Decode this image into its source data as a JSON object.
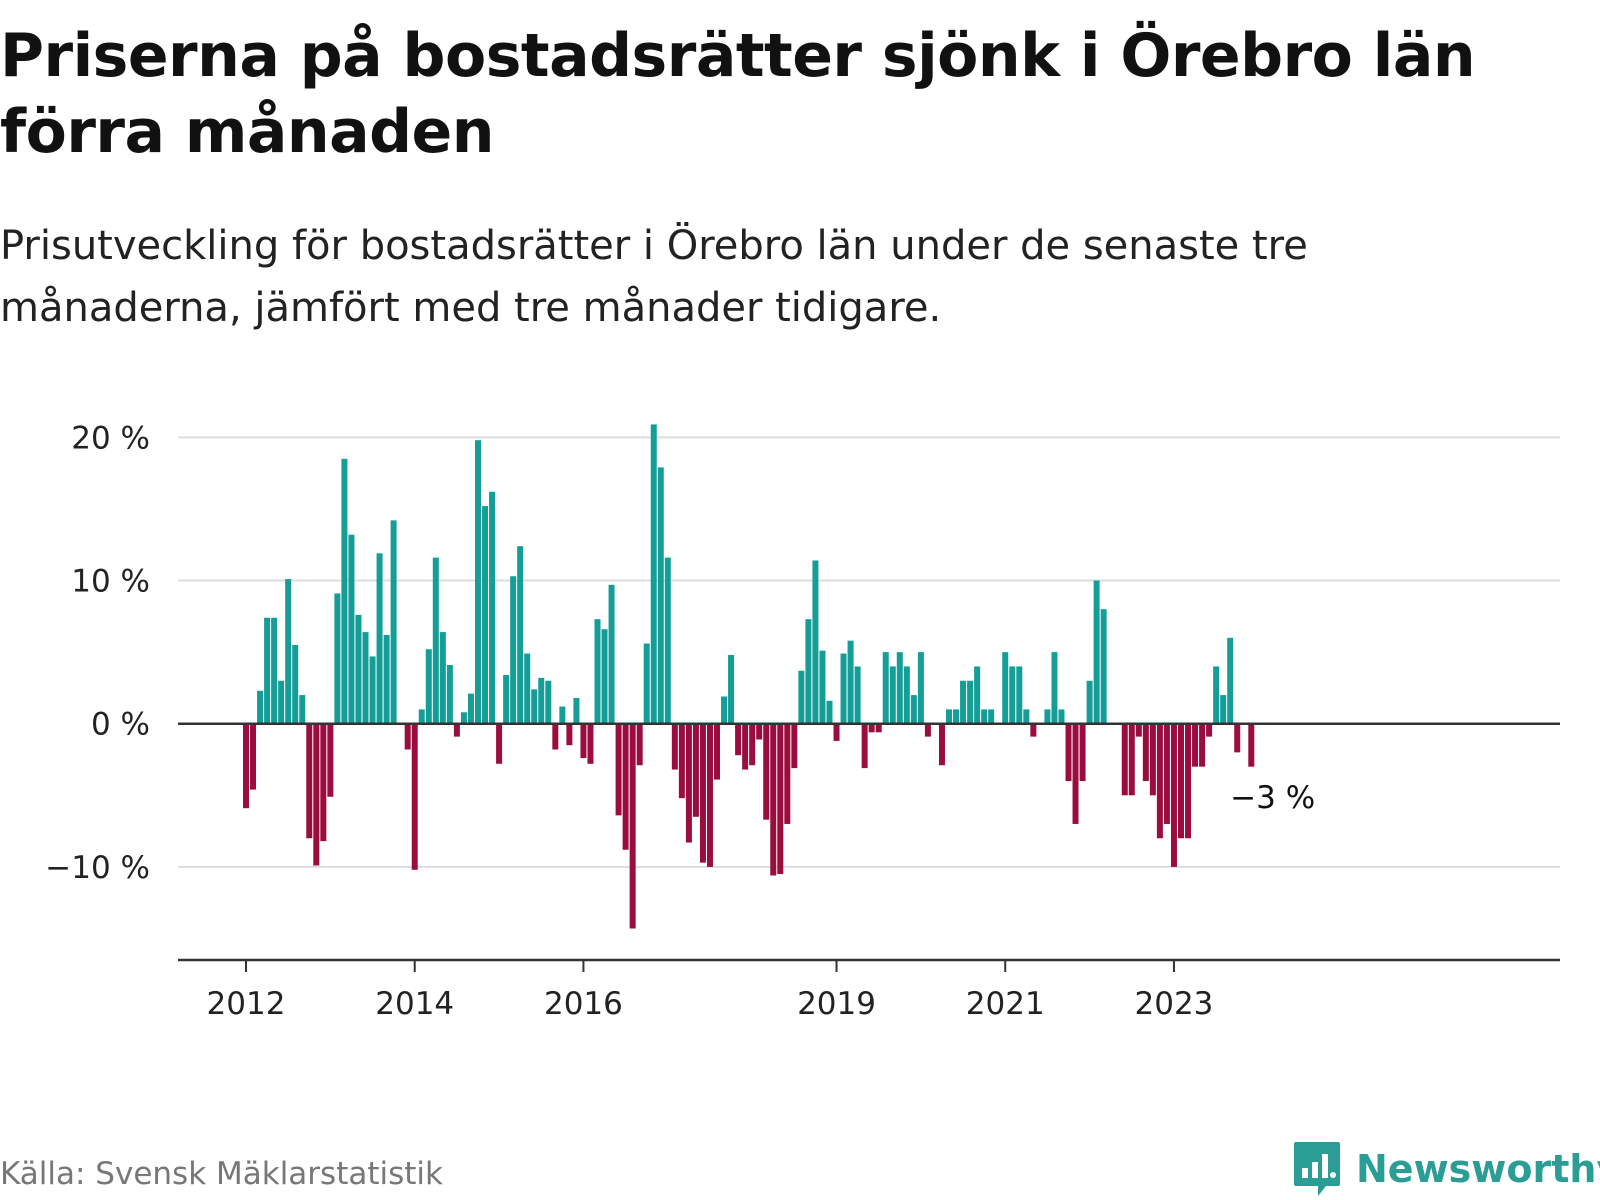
{
  "header": {
    "title": "Priserna på bostadsrätter sjönk i Örebro län förra månaden",
    "subtitle": "Prisutveckling för bostadsrätter i Örebro län under de senaste tre månaderna, jämfört med tre månader tidigare."
  },
  "footer": {
    "source": "Källa: Svensk Mäklarstatistik",
    "brand": "Newsworthy"
  },
  "colors": {
    "positive": "#159e97",
    "negative": "#9b0d3f",
    "grid": "#dddddd",
    "axis": "#333333",
    "brand": "#2a9d95"
  },
  "icons": {
    "brand_logo": "bar-chart-speech-bubble-icon"
  },
  "chart_data": {
    "type": "bar",
    "title": "",
    "xlabel": "",
    "ylabel": "",
    "ylim": [
      -16.5,
      21
    ],
    "yticks": [
      {
        "value": 20,
        "label": "20 %"
      },
      {
        "value": 10,
        "label": "10 %"
      },
      {
        "value": 0,
        "label": "0 %"
      },
      {
        "value": -10,
        "label": "−10 %"
      }
    ],
    "xticks": [
      {
        "date": "2012-01",
        "label": "2012"
      },
      {
        "date": "2014-01",
        "label": "2014"
      },
      {
        "date": "2016-01",
        "label": "2016"
      },
      {
        "date": "2019-01",
        "label": "2019"
      },
      {
        "date": "2021-01",
        "label": "2021"
      },
      {
        "date": "2023-01",
        "label": "2023"
      }
    ],
    "grid": true,
    "legend": "none",
    "annotation": {
      "date": "2023-09",
      "label": "−3 %"
    },
    "series": [
      {
        "points": [
          {
            "date": "2012-01",
            "value": -5.9
          },
          {
            "date": "2012-02",
            "value": -4.6
          },
          {
            "date": "2012-03",
            "value": 2.3
          },
          {
            "date": "2012-04",
            "value": 7.4
          },
          {
            "date": "2012-05",
            "value": 7.4
          },
          {
            "date": "2012-06",
            "value": 3.0
          },
          {
            "date": "2012-07",
            "value": 10.1
          },
          {
            "date": "2012-08",
            "value": 5.5
          },
          {
            "date": "2012-09",
            "value": 2.0
          },
          {
            "date": "2012-10",
            "value": -8.0
          },
          {
            "date": "2012-11",
            "value": -9.9
          },
          {
            "date": "2012-12",
            "value": -8.2
          },
          {
            "date": "2013-01",
            "value": -5.1
          },
          {
            "date": "2013-02",
            "value": 9.1
          },
          {
            "date": "2013-03",
            "value": 18.5
          },
          {
            "date": "2013-04",
            "value": 13.2
          },
          {
            "date": "2013-05",
            "value": 7.6
          },
          {
            "date": "2013-06",
            "value": 6.4
          },
          {
            "date": "2013-07",
            "value": 4.7
          },
          {
            "date": "2013-08",
            "value": 11.9
          },
          {
            "date": "2013-09",
            "value": 6.2
          },
          {
            "date": "2013-10",
            "value": 14.2
          },
          {
            "date": "2013-12",
            "value": -1.8
          },
          {
            "date": "2014-01",
            "value": -10.2
          },
          {
            "date": "2014-02",
            "value": 1.0
          },
          {
            "date": "2014-03",
            "value": 5.2
          },
          {
            "date": "2014-04",
            "value": 11.6
          },
          {
            "date": "2014-05",
            "value": 6.4
          },
          {
            "date": "2014-06",
            "value": 4.1
          },
          {
            "date": "2014-07",
            "value": -0.9
          },
          {
            "date": "2014-08",
            "value": 0.8
          },
          {
            "date": "2014-09",
            "value": 2.1
          },
          {
            "date": "2014-10",
            "value": 19.8
          },
          {
            "date": "2014-11",
            "value": 15.2
          },
          {
            "date": "2014-12",
            "value": 16.2
          },
          {
            "date": "2015-01",
            "value": -2.8
          },
          {
            "date": "2015-02",
            "value": 3.4
          },
          {
            "date": "2015-03",
            "value": 10.3
          },
          {
            "date": "2015-04",
            "value": 12.4
          },
          {
            "date": "2015-05",
            "value": 4.9
          },
          {
            "date": "2015-06",
            "value": 2.4
          },
          {
            "date": "2015-07",
            "value": 3.2
          },
          {
            "date": "2015-08",
            "value": 3.0
          },
          {
            "date": "2015-09",
            "value": -1.8
          },
          {
            "date": "2015-10",
            "value": 1.2
          },
          {
            "date": "2015-11",
            "value": -1.5
          },
          {
            "date": "2015-12",
            "value": 1.8
          },
          {
            "date": "2016-01",
            "value": -2.4
          },
          {
            "date": "2016-02",
            "value": -2.8
          },
          {
            "date": "2016-03",
            "value": 7.3
          },
          {
            "date": "2016-04",
            "value": 6.6
          },
          {
            "date": "2016-05",
            "value": 9.7
          },
          {
            "date": "2016-06",
            "value": -6.4
          },
          {
            "date": "2016-07",
            "value": -8.8
          },
          {
            "date": "2016-08",
            "value": -14.3
          },
          {
            "date": "2016-09",
            "value": -2.9
          },
          {
            "date": "2016-10",
            "value": 5.6
          },
          {
            "date": "2016-11",
            "value": 20.9
          },
          {
            "date": "2016-12",
            "value": 17.9
          },
          {
            "date": "2017-01",
            "value": 11.6
          },
          {
            "date": "2017-02",
            "value": -3.2
          },
          {
            "date": "2017-03",
            "value": -5.2
          },
          {
            "date": "2017-04",
            "value": -8.3
          },
          {
            "date": "2017-05",
            "value": -6.5
          },
          {
            "date": "2017-06",
            "value": -9.7
          },
          {
            "date": "2017-07",
            "value": -10.0
          },
          {
            "date": "2017-08",
            "value": -3.9
          },
          {
            "date": "2017-09",
            "value": 1.9
          },
          {
            "date": "2017-10",
            "value": 4.8
          },
          {
            "date": "2017-11",
            "value": -2.2
          },
          {
            "date": "2017-12",
            "value": -3.2
          },
          {
            "date": "2018-01",
            "value": -2.9
          },
          {
            "date": "2018-02",
            "value": -1.1
          },
          {
            "date": "2018-03",
            "value": -6.7
          },
          {
            "date": "2018-04",
            "value": -10.6
          },
          {
            "date": "2018-05",
            "value": -10.5
          },
          {
            "date": "2018-06",
            "value": -7.0
          },
          {
            "date": "2018-07",
            "value": -3.1
          },
          {
            "date": "2018-08",
            "value": 3.7
          },
          {
            "date": "2018-09",
            "value": 7.3
          },
          {
            "date": "2018-10",
            "value": 11.4
          },
          {
            "date": "2018-11",
            "value": 5.1
          },
          {
            "date": "2018-12",
            "value": 1.6
          },
          {
            "date": "2019-01",
            "value": -1.2
          },
          {
            "date": "2019-02",
            "value": 4.9
          },
          {
            "date": "2019-03",
            "value": 5.8
          },
          {
            "date": "2019-04",
            "value": 4.0
          },
          {
            "date": "2019-05",
            "value": -3.1
          },
          {
            "date": "2019-06",
            "value": -0.6
          },
          {
            "date": "2019-07",
            "value": -0.6
          },
          {
            "date": "2019-08",
            "value": 5.0
          },
          {
            "date": "2019-09",
            "value": 4.0
          },
          {
            "date": "2019-10",
            "value": 5.0
          },
          {
            "date": "2019-11",
            "value": 4.0
          },
          {
            "date": "2019-12",
            "value": 2.0
          },
          {
            "date": "2020-01",
            "value": 5.0
          },
          {
            "date": "2020-02",
            "value": -0.9
          },
          {
            "date": "2020-04",
            "value": -2.9
          },
          {
            "date": "2020-05",
            "value": 1.0
          },
          {
            "date": "2020-06",
            "value": 1.0
          },
          {
            "date": "2020-07",
            "value": 3.0
          },
          {
            "date": "2020-08",
            "value": 3.0
          },
          {
            "date": "2020-09",
            "value": 4.0
          },
          {
            "date": "2020-10",
            "value": 1.0
          },
          {
            "date": "2020-11",
            "value": 1.0
          },
          {
            "date": "2021-01",
            "value": 5.0
          },
          {
            "date": "2021-02",
            "value": 4.0
          },
          {
            "date": "2021-03",
            "value": 4.0
          },
          {
            "date": "2021-04",
            "value": 1.0
          },
          {
            "date": "2021-05",
            "value": -0.9
          },
          {
            "date": "2021-07",
            "value": 1.0
          },
          {
            "date": "2021-08",
            "value": 5.0
          },
          {
            "date": "2021-09",
            "value": 1.0
          },
          {
            "date": "2021-10",
            "value": -4.0
          },
          {
            "date": "2021-11",
            "value": -7.0
          },
          {
            "date": "2021-12",
            "value": -4.0
          },
          {
            "date": "2022-01",
            "value": 3.0
          },
          {
            "date": "2022-02",
            "value": 10.0
          },
          {
            "date": "2022-03",
            "value": 8.0
          },
          {
            "date": "2022-06",
            "value": -5.0
          },
          {
            "date": "2022-07",
            "value": -5.0
          },
          {
            "date": "2022-08",
            "value": -0.9
          },
          {
            "date": "2022-09",
            "value": -4.0
          },
          {
            "date": "2022-10",
            "value": -5.0
          },
          {
            "date": "2022-11",
            "value": -8.0
          },
          {
            "date": "2022-12",
            "value": -7.0
          },
          {
            "date": "2023-01",
            "value": -10.0
          },
          {
            "date": "2023-02",
            "value": -8.0
          },
          {
            "date": "2023-03",
            "value": -8.0
          },
          {
            "date": "2023-04",
            "value": -3.0
          },
          {
            "date": "2023-05",
            "value": -3.0
          },
          {
            "date": "2023-06",
            "value": -0.9
          },
          {
            "date": "2023-07",
            "value": 4.0
          },
          {
            "date": "2023-08",
            "value": 2.0
          },
          {
            "date": "2023-09",
            "value": 6.0
          },
          {
            "date": "2023-10",
            "value": -2.0
          },
          {
            "date": "2023-12",
            "value": -3.0
          }
        ]
      }
    ]
  }
}
